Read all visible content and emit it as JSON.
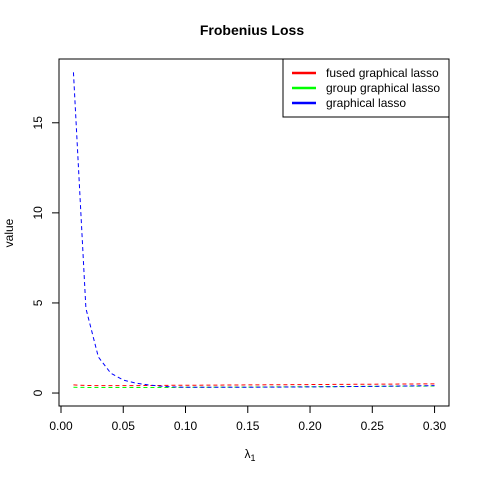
{
  "chart_data": {
    "type": "line",
    "title": "Frobenius Loss",
    "xlabel": "λ",
    "xlabel_subscript": "1",
    "ylabel": "value",
    "xlim": [
      -0.0016,
      0.3116
    ],
    "ylim": [
      -0.72,
      18.54
    ],
    "xticks": [
      0.0,
      0.05,
      0.1,
      0.15,
      0.2,
      0.25,
      0.3
    ],
    "xtick_labels": [
      "0.00",
      "0.05",
      "0.10",
      "0.15",
      "0.20",
      "0.25",
      "0.30"
    ],
    "yticks": [
      0,
      5,
      10,
      15
    ],
    "ytick_labels": [
      "0",
      "5",
      "10",
      "15"
    ],
    "grid": false,
    "legend_position": "top-right",
    "line_style": "dashed",
    "series": [
      {
        "name": "fused graphical lasso",
        "color": "#ff0000",
        "x": [
          0.01,
          0.02,
          0.03,
          0.04,
          0.05,
          0.06,
          0.07,
          0.08,
          0.09,
          0.1,
          0.15,
          0.2,
          0.25,
          0.3
        ],
        "y": [
          0.45,
          0.42,
          0.41,
          0.41,
          0.41,
          0.41,
          0.42,
          0.42,
          0.43,
          0.43,
          0.45,
          0.47,
          0.49,
          0.51
        ]
      },
      {
        "name": "group graphical lasso",
        "color": "#00ff00",
        "x": [
          0.01,
          0.02,
          0.03,
          0.04,
          0.05,
          0.06,
          0.07,
          0.08,
          0.09,
          0.1,
          0.15,
          0.2,
          0.25,
          0.3
        ],
        "y": [
          0.32,
          0.31,
          0.31,
          0.31,
          0.31,
          0.31,
          0.31,
          0.31,
          0.31,
          0.32,
          0.33,
          0.35,
          0.37,
          0.39
        ]
      },
      {
        "name": "graphical lasso",
        "color": "#0000ff",
        "x": [
          0.01,
          0.02,
          0.03,
          0.04,
          0.05,
          0.06,
          0.07,
          0.08,
          0.09,
          0.1,
          0.15,
          0.2,
          0.25,
          0.3
        ],
        "y": [
          17.8,
          4.7,
          2.0,
          1.1,
          0.72,
          0.55,
          0.45,
          0.38,
          0.34,
          0.32,
          0.32,
          0.34,
          0.37,
          0.41
        ]
      }
    ]
  }
}
